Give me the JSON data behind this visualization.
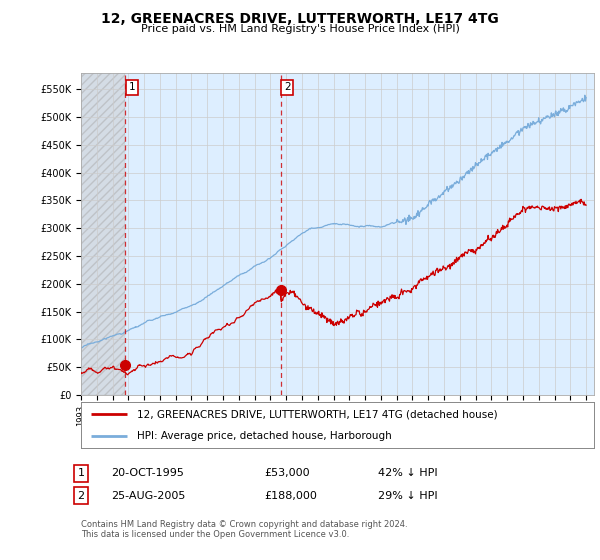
{
  "title": "12, GREENACRES DRIVE, LUTTERWORTH, LE17 4TG",
  "subtitle": "Price paid vs. HM Land Registry's House Price Index (HPI)",
  "ylabel_ticks": [
    "£0",
    "£50K",
    "£100K",
    "£150K",
    "£200K",
    "£250K",
    "£300K",
    "£350K",
    "£400K",
    "£450K",
    "£500K",
    "£550K"
  ],
  "ytick_values": [
    0,
    50000,
    100000,
    150000,
    200000,
    250000,
    300000,
    350000,
    400000,
    450000,
    500000,
    550000
  ],
  "ylim": [
    0,
    580000
  ],
  "xlim_start": 1993.0,
  "xlim_end": 2025.5,
  "sale1_x": 1995.8,
  "sale1_y": 53000,
  "sale2_x": 2005.65,
  "sale2_y": 188000,
  "sale1_date": "20-OCT-1995",
  "sale1_price": "£53,000",
  "sale1_hpi": "42% ↓ HPI",
  "sale2_date": "25-AUG-2005",
  "sale2_price": "£188,000",
  "sale2_hpi": "29% ↓ HPI",
  "sale_color": "#cc0000",
  "hpi_color": "#7aaddb",
  "vline_color": "#cc0000",
  "grid_color": "#cccccc",
  "background_color": "#ffffff",
  "plot_bg_color": "#ddeeff",
  "hatch_bg_color": "#dddddd",
  "legend_line1": "12, GREENACRES DRIVE, LUTTERWORTH, LE17 4TG (detached house)",
  "legend_line2": "HPI: Average price, detached house, Harborough",
  "footnote": "Contains HM Land Registry data © Crown copyright and database right 2024.\nThis data is licensed under the Open Government Licence v3.0.",
  "xtick_years": [
    1993,
    1994,
    1995,
    1996,
    1997,
    1998,
    1999,
    2000,
    2001,
    2002,
    2003,
    2004,
    2005,
    2006,
    2007,
    2008,
    2009,
    2010,
    2011,
    2012,
    2013,
    2014,
    2015,
    2016,
    2017,
    2018,
    2019,
    2020,
    2021,
    2022,
    2023,
    2024,
    2025
  ]
}
